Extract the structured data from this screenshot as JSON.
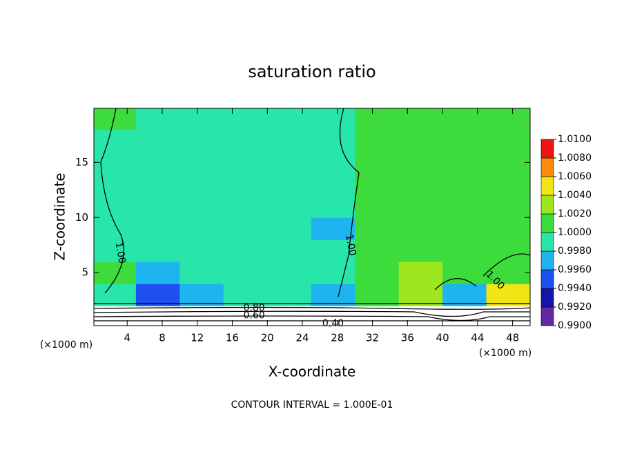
{
  "chart_data": {
    "type": "contour",
    "title": "saturation ratio",
    "x_label": "X-coordinate",
    "y_label": "Z-coordinate",
    "x_unit": "(×1000 m)",
    "footer": "CONTOUR INTERVAL = 1.000E-01",
    "xlim": [
      0.2,
      50
    ],
    "ylim": [
      0.2,
      19.9
    ],
    "xticks": [
      4,
      8,
      12,
      16,
      20,
      24,
      28,
      32,
      36,
      40,
      44,
      48
    ],
    "yticks": [
      5,
      10,
      15
    ],
    "x": [
      2.5,
      7.5,
      12.5,
      17.5,
      22.5,
      27.5,
      32.5,
      37.5,
      42.5,
      47.5
    ],
    "y": [
      1,
      3,
      5,
      7,
      9,
      11,
      13,
      15,
      17,
      19
    ],
    "z": [
      [
        0.6,
        0.6,
        0.6,
        0.6,
        0.6,
        0.6,
        0.6,
        0.6,
        0.6,
        0.6
      ],
      [
        0.9985,
        0.9955,
        0.9975,
        0.9985,
        0.998,
        0.9975,
        1.0005,
        1.0025,
        0.996,
        1.004
      ],
      [
        1.0005,
        0.9975,
        0.998,
        0.999,
        0.9985,
        0.998,
        1.0005,
        1.0025,
        1.0015,
        1.001
      ],
      [
        0.9995,
        0.998,
        0.9985,
        0.999,
        0.9985,
        0.998,
        1.0005,
        1.0015,
        1.0015,
        1.0015
      ],
      [
        0.999,
        0.9985,
        0.9985,
        0.999,
        0.9985,
        0.9975,
        1.0005,
        1.001,
        1.001,
        1.0015
      ],
      [
        0.999,
        0.9985,
        0.9985,
        0.999,
        0.9985,
        0.998,
        1.0005,
        1.0008,
        1.0008,
        1.001
      ],
      [
        0.9992,
        0.9988,
        0.9988,
        0.999,
        0.9988,
        0.9985,
        1.0003,
        1.0005,
        1.0005,
        1.0008
      ],
      [
        0.9995,
        0.999,
        0.999,
        0.999,
        0.999,
        0.9988,
        1.0002,
        1.0005,
        1.0003,
        1.0005
      ],
      [
        0.9998,
        0.9992,
        0.9992,
        0.9992,
        0.9992,
        0.999,
        1.0002,
        1.0003,
        1.0003,
        1.0003
      ],
      [
        1.0002,
        0.9995,
        0.9995,
        0.9995,
        0.9995,
        0.9995,
        1.0002,
        1.0002,
        1.0002,
        1.0002
      ]
    ],
    "levels": [
      {
        "value": 0.99,
        "label": "0.9900"
      },
      {
        "value": 0.992,
        "label": "0.9920"
      },
      {
        "value": 0.994,
        "label": "0.9940"
      },
      {
        "value": 0.996,
        "label": "0.9960"
      },
      {
        "value": 0.998,
        "label": "0.9980"
      },
      {
        "value": 1.0,
        "label": "1.0000"
      },
      {
        "value": 1.002,
        "label": "1.0020"
      },
      {
        "value": 1.004,
        "label": "1.0040"
      },
      {
        "value": 1.006,
        "label": "1.0060"
      },
      {
        "value": 1.008,
        "label": "1.0080"
      },
      {
        "value": 1.01,
        "label": "1.0100"
      }
    ],
    "colors": [
      "#6428a0",
      "#1414aa",
      "#1e50f0",
      "#1eb4f0",
      "#28e6aa",
      "#3cdc3c",
      "#9ee61e",
      "#f0e614",
      "#fa8c0a",
      "#f01414"
    ],
    "annotations": [
      {
        "text": "1.00",
        "x": 3.2,
        "y": 6.8
      },
      {
        "text": "1.00",
        "x": 29.5,
        "y": 7.5
      },
      {
        "text": "1.00",
        "x": 46,
        "y": 4.3
      },
      {
        "text": "0.80",
        "x": 18.5,
        "y": 1.8
      },
      {
        "text": "0.60",
        "x": 18.5,
        "y": 1.1
      },
      {
        "text": "0.40",
        "x": 27.5,
        "y": 0.4
      }
    ]
  }
}
